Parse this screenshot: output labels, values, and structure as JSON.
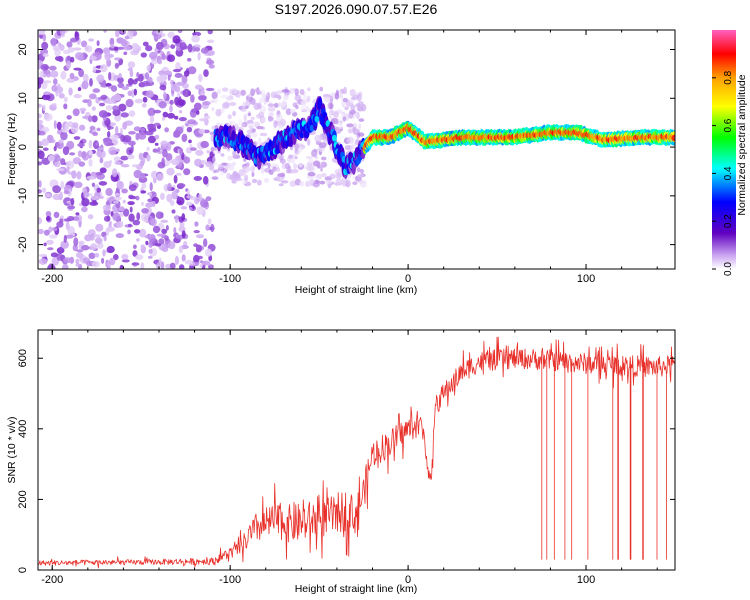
{
  "title": "S197.2026.090.07.57.E26",
  "chart_data": [
    {
      "type": "heatmap",
      "xlabel": "Height of straight line (km)",
      "ylabel": "Frequency (Hz)",
      "xlim": [
        -208,
        150
      ],
      "ylim": [
        -25,
        24
      ],
      "xticks": [
        -200,
        -100,
        0,
        100
      ],
      "xtick_labels": [
        "-200",
        "-100",
        "0",
        "100"
      ],
      "yticks": [
        -20,
        -10,
        0,
        10,
        20
      ],
      "ytick_labels": [
        "-20",
        "-10",
        "0",
        "10",
        "20"
      ],
      "colorbar": {
        "label": "Normalized spectral amplitude",
        "range": [
          0.0,
          1.0
        ],
        "ticks": [
          0.0,
          0.2,
          0.4,
          0.6,
          0.8
        ],
        "tick_labels": [
          "0.0",
          "0.2",
          "0.4",
          "0.6",
          "0.8"
        ],
        "colormap": [
          "#ff60c0",
          "#ff0000",
          "#ffa000",
          "#ffff00",
          "#00ff00",
          "#00ffff",
          "#0000ff",
          "#6000c0",
          "#c8a0f0",
          "#ffffff"
        ]
      },
      "regions": [
        {
          "x_range": [
            -208,
            -110
          ],
          "f_range": [
            -25,
            24
          ],
          "amplitude": [
            0.05,
            0.2
          ],
          "description": "diffuse noise"
        },
        {
          "x_range": [
            -110,
            -25
          ],
          "f_range": [
            -8,
            12
          ],
          "amplitude": [
            0.1,
            0.35
          ]
        },
        {
          "x_range": [
            -25,
            150
          ],
          "f_center": 1.5,
          "f_width": 2,
          "amplitude": [
            0.4,
            1.0
          ]
        }
      ],
      "ridge": [
        {
          "x": -105,
          "f": 3
        },
        {
          "x": -95,
          "f": 1
        },
        {
          "x": -85,
          "f": -2
        },
        {
          "x": -75,
          "f": 0
        },
        {
          "x": -65,
          "f": 3
        },
        {
          "x": -55,
          "f": 4
        },
        {
          "x": -50,
          "f": 8
        },
        {
          "x": -45,
          "f": 4
        },
        {
          "x": -35,
          "f": -4
        },
        {
          "x": -28,
          "f": -2
        },
        {
          "x": -20,
          "f": 2
        },
        {
          "x": -10,
          "f": 2
        },
        {
          "x": 0,
          "f": 4
        },
        {
          "x": 10,
          "f": 1
        },
        {
          "x": 30,
          "f": 2
        },
        {
          "x": 60,
          "f": 2
        },
        {
          "x": 80,
          "f": 3
        },
        {
          "x": 95,
          "f": 3
        },
        {
          "x": 110,
          "f": 1.5
        },
        {
          "x": 130,
          "f": 2
        },
        {
          "x": 150,
          "f": 2
        }
      ]
    },
    {
      "type": "line",
      "xlabel": "Height of straight line (km)",
      "ylabel": "SNR (10 * v/v)",
      "xlim": [
        -208,
        150
      ],
      "ylim": [
        0,
        680
      ],
      "xticks": [
        -200,
        -100,
        0,
        100
      ],
      "xtick_labels": [
        "-200",
        "-100",
        "0",
        "100"
      ],
      "yticks": [
        0,
        200,
        400,
        600
      ],
      "ytick_labels": [
        "0",
        "200",
        "400",
        "600"
      ],
      "color": "#e8302a",
      "series": [
        {
          "name": "SNR",
          "x": [
            -208,
            -150,
            -110,
            -95,
            -85,
            -75,
            -65,
            -55,
            -45,
            -35,
            -30,
            -25,
            -20,
            -10,
            0,
            8,
            13,
            15,
            20,
            30,
            40,
            60,
            80,
            100,
            120,
            140,
            150
          ],
          "y": [
            20,
            22,
            25,
            60,
            120,
            140,
            130,
            140,
            150,
            170,
            150,
            220,
            330,
            360,
            400,
            410,
            230,
            460,
            500,
            560,
            590,
            600,
            595,
            585,
            580,
            575,
            580
          ],
          "spread": [
            15,
            15,
            20,
            40,
            90,
            100,
            110,
            110,
            110,
            120,
            100,
            100,
            80,
            80,
            70,
            60,
            50,
            60,
            60,
            60,
            60,
            60,
            60,
            60,
            60,
            60,
            60
          ]
        }
      ],
      "dropouts_x": [
        75,
        78,
        82,
        88,
        92,
        101,
        115,
        118,
        125,
        132,
        140,
        145
      ]
    }
  ]
}
